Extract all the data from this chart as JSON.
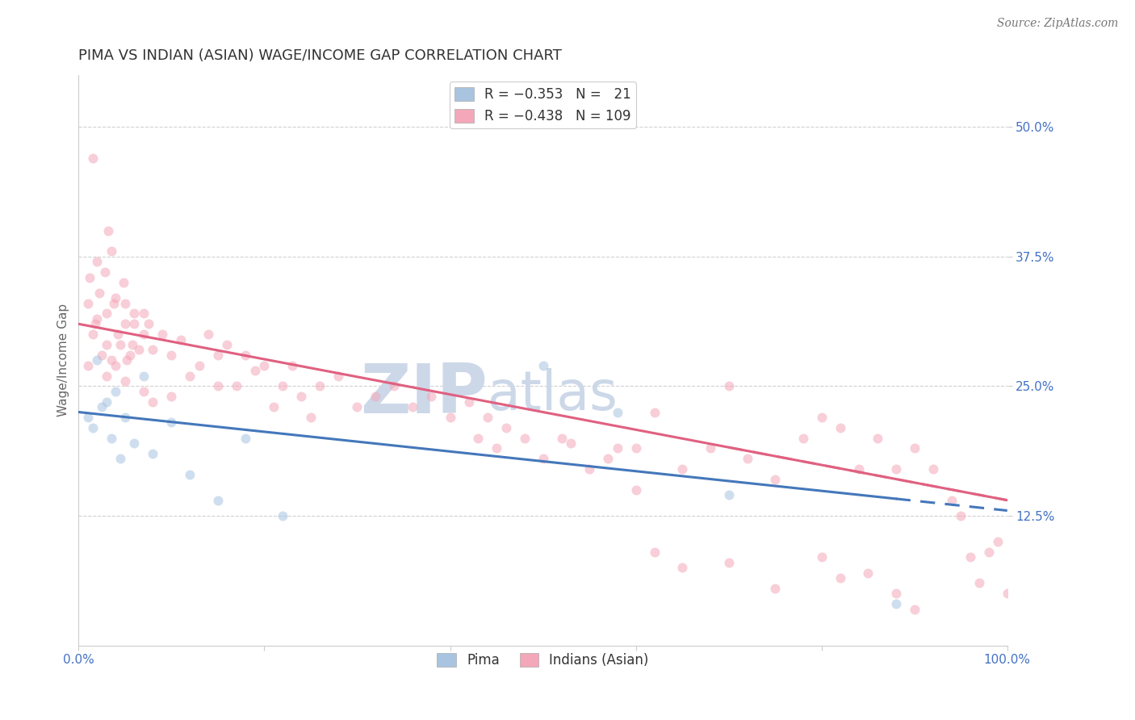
{
  "title": "PIMA VS INDIAN (ASIAN) WAGE/INCOME GAP CORRELATION CHART",
  "source": "Source: ZipAtlas.com",
  "ylabel": "Wage/Income Gap",
  "xlim": [
    0,
    100
  ],
  "ylim": [
    0,
    55
  ],
  "yticks": [
    12.5,
    25.0,
    37.5,
    50.0
  ],
  "ytick_labels": [
    "12.5%",
    "25.0%",
    "37.5%",
    "50.0%"
  ],
  "pima_color": "#a8c4e0",
  "indian_color": "#f4a7b9",
  "pima_line_color": "#4477bb",
  "indian_line_color": "#e06080",
  "background_color": "#ffffff",
  "grid_color": "#cccccc",
  "watermark": "ZIPatlas",
  "watermark_color": "#ccd8e8",
  "title_fontsize": 13,
  "axis_label_fontsize": 11,
  "tick_fontsize": 11,
  "legend_fontsize": 12,
  "source_fontsize": 10,
  "marker_size": 75,
  "marker_alpha": 0.55,
  "line_width": 2.2,
  "pima_line_x0": 0,
  "pima_line_y0": 22.5,
  "pima_line_x1": 100,
  "pima_line_y1": 13.0,
  "pima_solid_end": 88,
  "indian_line_x0": 0,
  "indian_line_y0": 31.0,
  "indian_line_x1": 100,
  "indian_line_y1": 14.0,
  "indian_solid_end": 100,
  "indian_dash_end": 100,
  "pima_x": [
    1.0,
    1.5,
    2.0,
    2.5,
    3.0,
    3.5,
    4.0,
    5.0,
    6.0,
    7.0,
    8.0,
    10.0,
    12.0,
    15.0,
    18.0,
    22.0,
    50.0,
    58.0,
    70.0,
    88.0,
    4.5
  ],
  "pima_y": [
    22.0,
    21.0,
    27.5,
    23.0,
    23.5,
    20.0,
    24.5,
    22.0,
    19.5,
    26.0,
    18.5,
    21.5,
    16.5,
    14.0,
    20.0,
    12.5,
    27.0,
    22.5,
    14.5,
    4.0,
    18.0
  ],
  "indian_x": [
    1.0,
    1.0,
    1.2,
    1.5,
    1.5,
    1.8,
    2.0,
    2.0,
    2.2,
    2.5,
    2.8,
    3.0,
    3.0,
    3.2,
    3.5,
    3.5,
    3.8,
    4.0,
    4.0,
    4.2,
    4.5,
    4.8,
    5.0,
    5.0,
    5.2,
    5.5,
    5.8,
    6.0,
    6.0,
    6.5,
    7.0,
    7.0,
    7.5,
    8.0,
    9.0,
    10.0,
    11.0,
    12.0,
    13.0,
    14.0,
    15.0,
    15.0,
    16.0,
    17.0,
    18.0,
    19.0,
    20.0,
    21.0,
    22.0,
    23.0,
    24.0,
    25.0,
    26.0,
    28.0,
    30.0,
    32.0,
    34.0,
    36.0,
    38.0,
    40.0,
    42.0,
    43.0,
    44.0,
    45.0,
    46.0,
    48.0,
    50.0,
    52.0,
    53.0,
    55.0,
    57.0,
    60.0,
    62.0,
    65.0,
    68.0,
    70.0,
    72.0,
    75.0,
    78.0,
    80.0,
    82.0,
    84.0,
    86.0,
    88.0,
    90.0,
    92.0,
    94.0,
    95.0,
    96.0,
    97.0,
    98.0,
    99.0,
    100.0,
    58.0,
    60.0,
    62.0,
    65.0,
    70.0,
    75.0,
    80.0,
    82.0,
    85.0,
    88.0,
    90.0,
    3.0,
    5.0,
    7.0,
    8.0,
    10.0
  ],
  "indian_y": [
    27.0,
    33.0,
    35.5,
    30.0,
    47.0,
    31.0,
    31.5,
    37.0,
    34.0,
    28.0,
    36.0,
    29.0,
    32.0,
    40.0,
    38.0,
    27.5,
    33.0,
    27.0,
    33.5,
    30.0,
    29.0,
    35.0,
    31.0,
    33.0,
    27.5,
    28.0,
    29.0,
    32.0,
    31.0,
    28.5,
    30.0,
    32.0,
    31.0,
    28.5,
    30.0,
    28.0,
    29.5,
    26.0,
    27.0,
    30.0,
    28.0,
    25.0,
    29.0,
    25.0,
    28.0,
    26.5,
    27.0,
    23.0,
    25.0,
    27.0,
    24.0,
    22.0,
    25.0,
    26.0,
    23.0,
    24.0,
    25.0,
    23.0,
    24.0,
    22.0,
    23.5,
    20.0,
    22.0,
    19.0,
    21.0,
    20.0,
    18.0,
    20.0,
    19.5,
    17.0,
    18.0,
    19.0,
    22.5,
    17.0,
    19.0,
    25.0,
    18.0,
    16.0,
    20.0,
    22.0,
    21.0,
    17.0,
    20.0,
    17.0,
    19.0,
    17.0,
    14.0,
    12.5,
    8.5,
    6.0,
    9.0,
    10.0,
    5.0,
    19.0,
    15.0,
    9.0,
    7.5,
    8.0,
    5.5,
    8.5,
    6.5,
    7.0,
    5.0,
    3.5,
    26.0,
    25.5,
    24.5,
    23.5,
    24.0
  ]
}
